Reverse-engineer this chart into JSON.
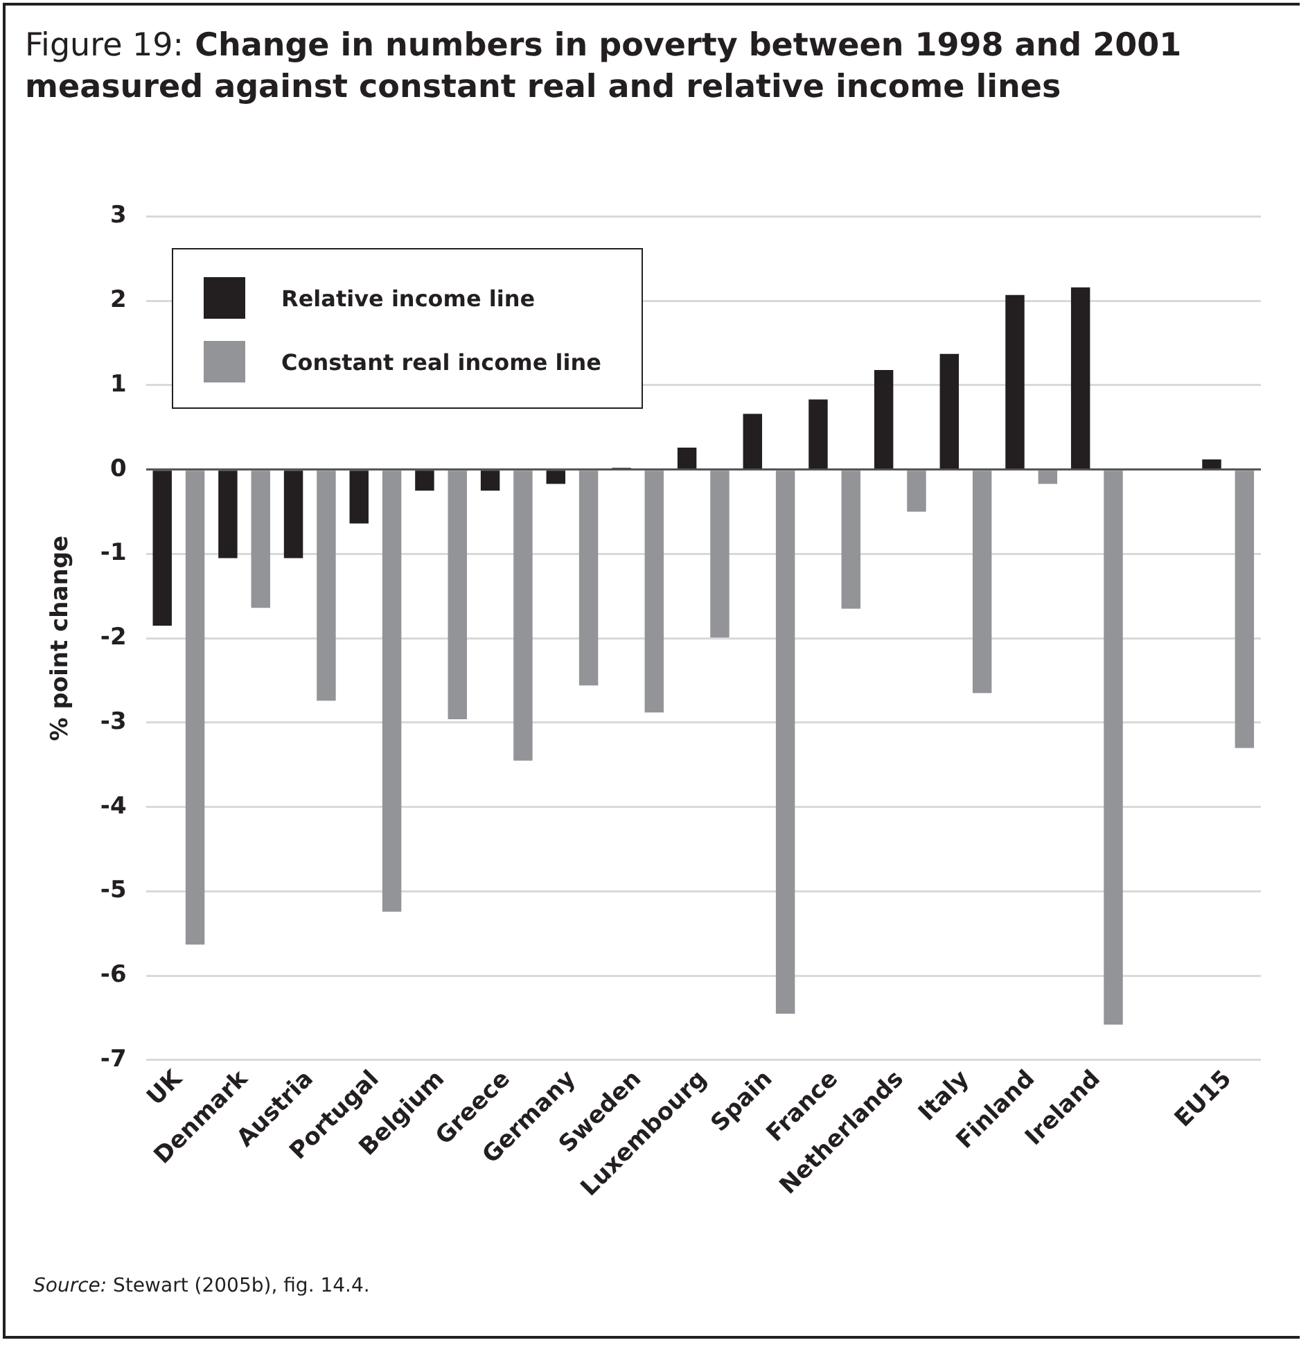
{
  "chart_data": {
    "type": "bar",
    "title": "Figure 19: Change in numbers in poverty between 1998 and 2001 measured against constant real and relative income lines",
    "ylabel": "% point change",
    "categories": [
      "UK",
      "Denmark",
      "Austria",
      "Portugal",
      "Belgium",
      "Greece",
      "Germany",
      "Sweden",
      "Luxembourg",
      "Spain",
      "France",
      "Netherlands",
      "Italy",
      "Finland",
      "Ireland",
      null,
      "EU15"
    ],
    "series": [
      {
        "name": "Relative income line",
        "color": "#231f20",
        "values": [
          -1.85,
          -1.05,
          -1.05,
          -0.64,
          -0.25,
          -0.25,
          -0.17,
          0.02,
          0.26,
          0.66,
          0.83,
          1.18,
          1.37,
          2.07,
          2.16,
          null,
          0.12
        ]
      },
      {
        "name": "Constant real income line",
        "color": "#929497",
        "values": [
          -5.63,
          -1.64,
          -2.74,
          -5.24,
          -2.96,
          -3.45,
          -2.56,
          -2.88,
          -1.99,
          -6.45,
          -1.65,
          -0.5,
          -2.65,
          -0.17,
          -6.58,
          null,
          -3.3
        ]
      }
    ],
    "ylim": [
      -7,
      3
    ],
    "yticks": [
      -7,
      -6,
      -5,
      -4,
      -3,
      -2,
      -1,
      0,
      1,
      2,
      3
    ],
    "grid": "y",
    "legend": "top left",
    "annotations": [
      "Source: Stewart (2005b), fig. 14.4."
    ]
  }
}
